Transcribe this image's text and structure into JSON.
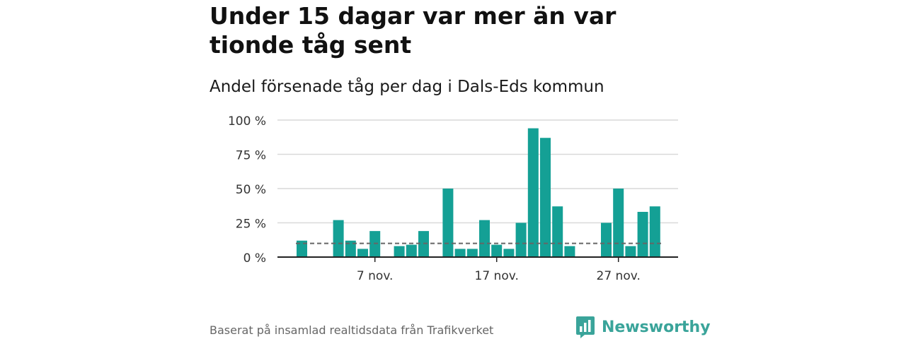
{
  "header": {
    "title": "Under 15 dagar var mer än var tionde tåg sent",
    "subtitle": "Andel försenade tåg per dag i Dals-Eds kommun"
  },
  "footer": {
    "source": "Baserat på insamlad realtidsdata från Trafikverket",
    "brand": "Newsworthy"
  },
  "colors": {
    "bar": "#14a095",
    "reference_line": "#666666",
    "grid": "#d9d9d9",
    "axis": "#222222",
    "brand": "#3aa49a"
  },
  "icons": {
    "brand_logo": "bar-chart-speech-bubble-icon"
  },
  "chart_data": {
    "type": "bar",
    "x": [
      "2024-11-01",
      "2024-11-02",
      "2024-11-03",
      "2024-11-04",
      "2024-11-05",
      "2024-11-06",
      "2024-11-07",
      "2024-11-08",
      "2024-11-09",
      "2024-11-10",
      "2024-11-11",
      "2024-11-12",
      "2024-11-13",
      "2024-11-14",
      "2024-11-15",
      "2024-11-16",
      "2024-11-17",
      "2024-11-18",
      "2024-11-19",
      "2024-11-20",
      "2024-11-21",
      "2024-11-22",
      "2024-11-23",
      "2024-11-24",
      "2024-11-25",
      "2024-11-26",
      "2024-11-27",
      "2024-11-28",
      "2024-11-29",
      "2024-11-30"
    ],
    "values": [
      12,
      null,
      null,
      27,
      12,
      6,
      19,
      null,
      8,
      9,
      19,
      null,
      50,
      6,
      6,
      27,
      9,
      6,
      25,
      94,
      87,
      37,
      8,
      null,
      null,
      25,
      50,
      8,
      33,
      37
    ],
    "ylim": [
      0,
      100
    ],
    "yticks": [
      0,
      25,
      50,
      75,
      100
    ],
    "ytick_labels": [
      "0 %",
      "25 %",
      "50 %",
      "75 %",
      "100 %"
    ],
    "xticks": [
      "2024-11-07",
      "2024-11-17",
      "2024-11-27"
    ],
    "xtick_labels": [
      "7 nov.",
      "17 nov.",
      "27 nov."
    ],
    "reference_line": 10,
    "grid": true,
    "legend": "none"
  }
}
